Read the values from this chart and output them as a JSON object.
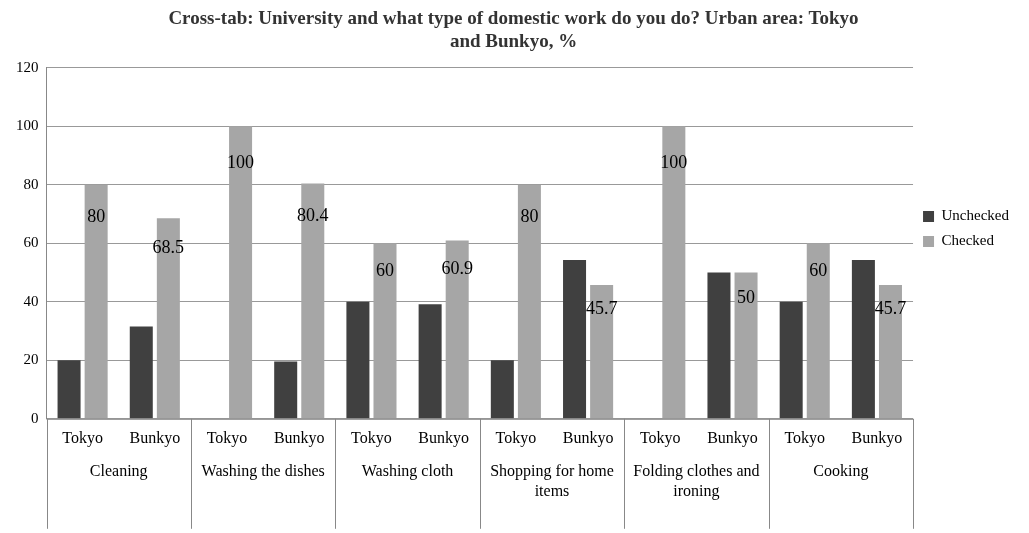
{
  "chart_data": {
    "type": "bar",
    "title": "Cross-tab: University and what type of domestic work do you do? Urban area: Tokyo and Bunkyo, %",
    "categories": [
      "Tokyo",
      "Bunkyo",
      "Tokyo",
      "Bunkyo",
      "Tokyo",
      "Bunkyo",
      "Tokyo",
      "Bunkyo",
      "Tokyo",
      "Bunkyo",
      "Tokyo",
      "Bunkyo"
    ],
    "annotations": [
      "Cleaning",
      "Washing the dishes",
      "Washing cloth",
      "Shopping for home items",
      "Folding clothes and ironing",
      "Cooking"
    ],
    "series": [
      {
        "name": "Unchecked",
        "color": "#404040",
        "values": [
          20,
          31.5,
          null,
          19.6,
          40,
          39.1,
          20,
          54.3,
          null,
          50,
          40,
          54.3
        ]
      },
      {
        "name": "Checked",
        "color": "#a6a6a6",
        "values": [
          80,
          68.5,
          100,
          80.4,
          60,
          60.9,
          80,
          45.7,
          100,
          50,
          60,
          45.7
        ],
        "value_labels": [
          "80",
          "68.5",
          "100",
          "80.4",
          "60",
          "60.9",
          "80",
          "45.7",
          "100",
          "50",
          "60",
          "45.7"
        ]
      }
    ],
    "ylim": [
      0,
      120
    ],
    "yticks": [
      0,
      20,
      40,
      60,
      80,
      100,
      120
    ],
    "grid": "y",
    "legend": "right"
  }
}
